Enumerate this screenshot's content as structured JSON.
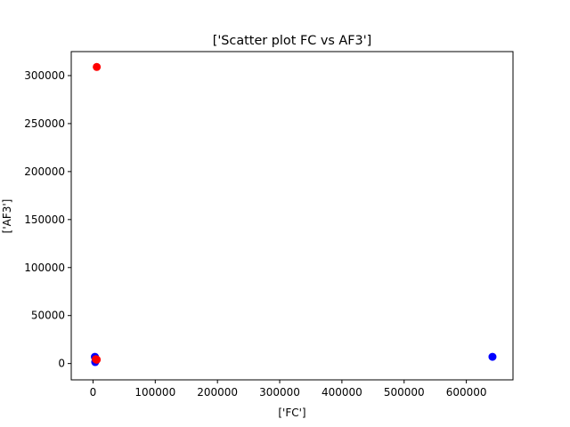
{
  "chart_data": {
    "type": "scatter",
    "title": "['Scatter plot FC vs AF3']",
    "xlabel": "['FC']",
    "ylabel": "['AF3']",
    "xlim": [
      -35000,
      675000
    ],
    "ylim": [
      -17000,
      325000
    ],
    "x_ticks": [
      {
        "value": 0,
        "label": "0"
      },
      {
        "value": 100000,
        "label": "100000"
      },
      {
        "value": 200000,
        "label": "200000"
      },
      {
        "value": 300000,
        "label": "300000"
      },
      {
        "value": 400000,
        "label": "400000"
      },
      {
        "value": 500000,
        "label": "500000"
      },
      {
        "value": 600000,
        "label": "600000"
      }
    ],
    "y_ticks": [
      {
        "value": 0,
        "label": "0"
      },
      {
        "value": 50000,
        "label": "50000"
      },
      {
        "value": 100000,
        "label": "100000"
      },
      {
        "value": 150000,
        "label": "150000"
      },
      {
        "value": 200000,
        "label": "200000"
      },
      {
        "value": 250000,
        "label": "250000"
      },
      {
        "value": 300000,
        "label": "300000"
      }
    ],
    "grid": false,
    "series": [
      {
        "color": "#0000ff",
        "points": [
          {
            "x": 3000,
            "y": 7000
          },
          {
            "x": 4000,
            "y": 5000
          },
          {
            "x": 4500,
            "y": 3000
          },
          {
            "x": 3500,
            "y": 1500
          },
          {
            "x": 5000,
            "y": 4000
          },
          {
            "x": 642000,
            "y": 7000
          }
        ]
      },
      {
        "color": "#ff0000",
        "points": [
          {
            "x": 6000,
            "y": 309000
          },
          {
            "x": 4500,
            "y": 4500
          },
          {
            "x": 5500,
            "y": 4200
          },
          {
            "x": 6000,
            "y": 4000
          }
        ]
      }
    ]
  }
}
